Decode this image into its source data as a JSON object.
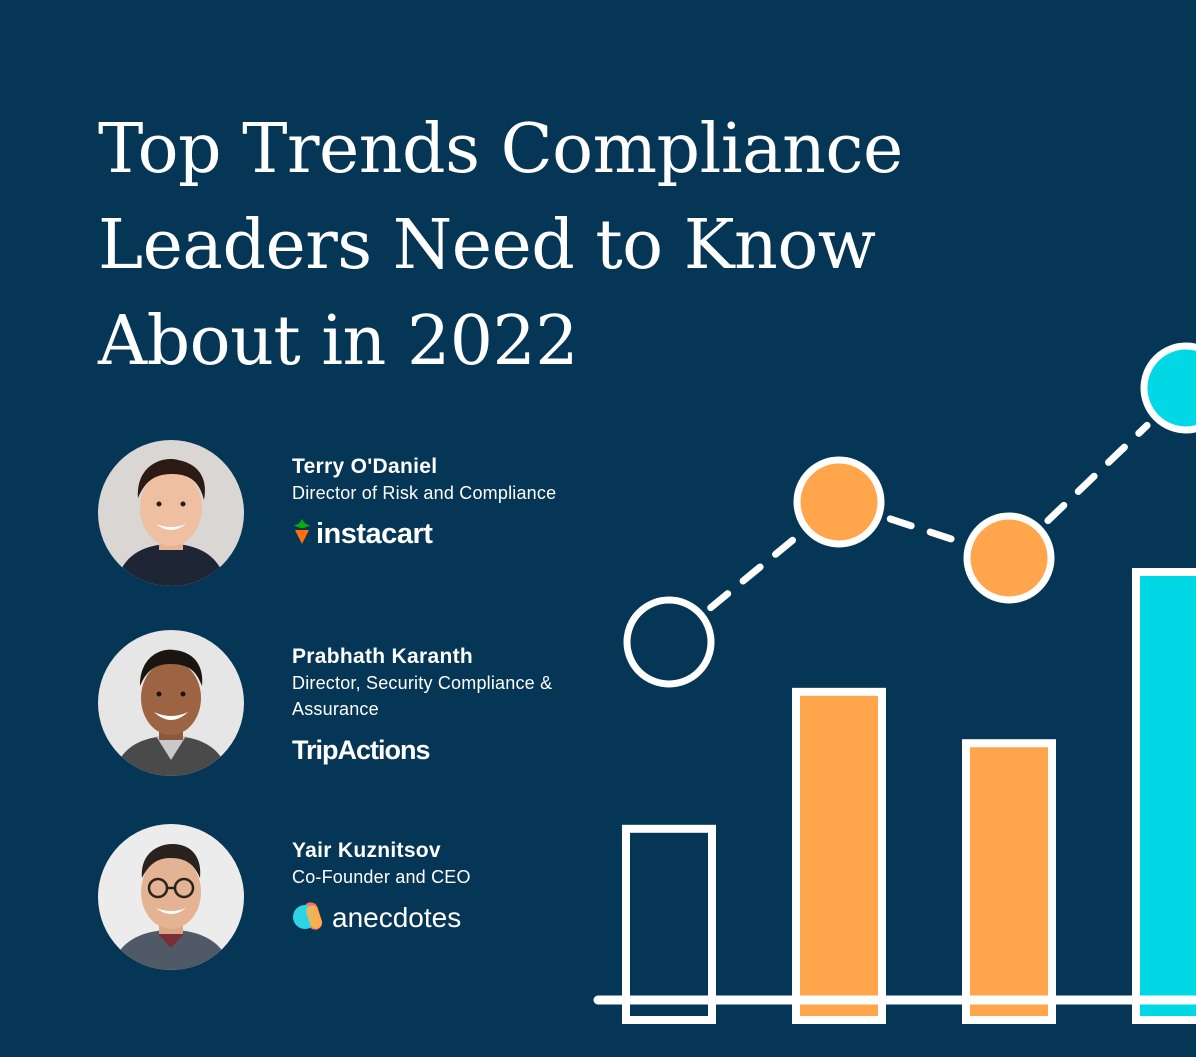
{
  "title_lines": [
    "Top Trends Compliance",
    "Leaders Need to Know",
    "About in 2022"
  ],
  "speakers": [
    {
      "name": "Terry O'Daniel",
      "role": "Director of Risk and Compliance",
      "company": "instacart",
      "logo_icon": "carrot-icon"
    },
    {
      "name": "Prabhath Karanth",
      "role": "Director, Security Compliance & Assurance",
      "company": "TripActions",
      "logo_icon": ""
    },
    {
      "name": "Yair Kuznitsov",
      "role": "Co-Founder and CEO",
      "company": "anecdotes",
      "logo_icon": "anecdotes-mark-icon"
    }
  ],
  "colors": {
    "background": "#063656",
    "orange": "#FFA64D",
    "cyan": "#00D8E6",
    "white": "#FFFFFF",
    "instacart_orange": "#FF7009",
    "instacart_green": "#0AAD0A"
  },
  "chart_graphic": {
    "bars": [
      {
        "fill": "outline",
        "level": 0.4
      },
      {
        "fill": "orange",
        "level": 0.72
      },
      {
        "fill": "orange",
        "level": 0.6
      },
      {
        "fill": "cyan",
        "level": 1.0
      }
    ],
    "trend_points": [
      {
        "fill": "outline",
        "level": 0.38
      },
      {
        "fill": "orange",
        "level": 0.68
      },
      {
        "fill": "orange",
        "level": 0.6
      },
      {
        "fill": "cyan",
        "level": 0.91
      }
    ]
  }
}
